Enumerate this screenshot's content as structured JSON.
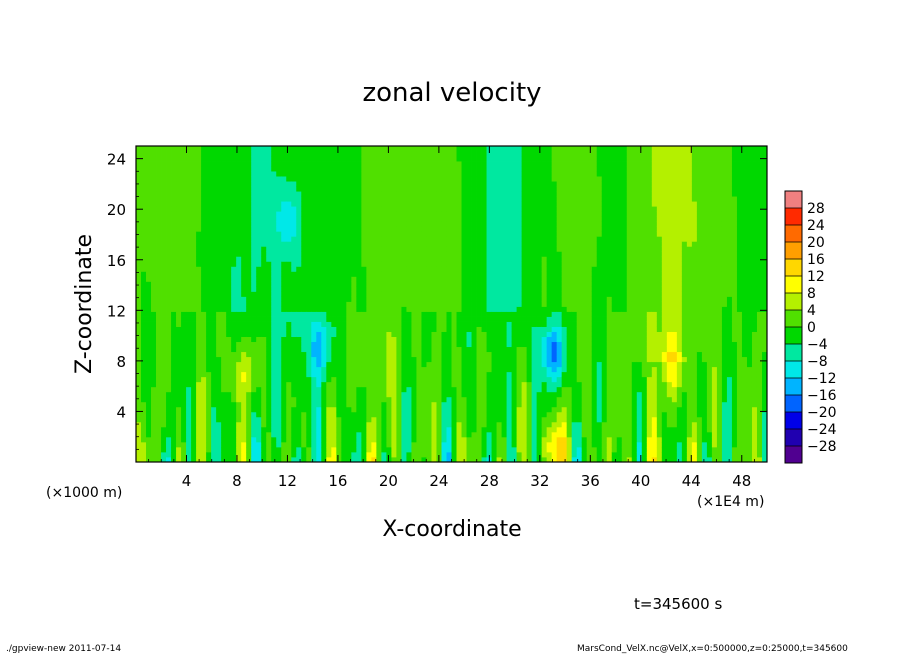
{
  "chart_data": {
    "type": "heatmap",
    "title": "zonal velocity",
    "xlabel": "X-coordinate",
    "ylabel": "Z-coordinate",
    "x_unit_label": "(×1E4 m)",
    "y_unit_label": "(×1000 m)",
    "xlim": [
      0,
      50
    ],
    "ylim": [
      0,
      25
    ],
    "x_ticks": [
      4,
      8,
      12,
      16,
      20,
      24,
      28,
      32,
      36,
      40,
      44,
      48
    ],
    "y_ticks": [
      4,
      8,
      12,
      16,
      20,
      24
    ],
    "colorbar_levels": [
      28,
      24,
      20,
      16,
      12,
      8,
      4,
      0,
      -4,
      -8,
      -12,
      -16,
      -20,
      -24,
      -28
    ],
    "colorbar_colors": [
      "#f08080",
      "#ff2a00",
      "#ff6a00",
      "#ff9f00",
      "#ffd700",
      "#ffff00",
      "#b4f000",
      "#50e000",
      "#00d800",
      "#00e8a0",
      "#00e8e8",
      "#00b4ff",
      "#0064ff",
      "#0000e8",
      "#2000b0",
      "#500090"
    ],
    "colorbar_range": [
      -32,
      32
    ],
    "field_note_strong_features": [
      {
        "x": 33,
        "z": 8.5,
        "value": -16
      },
      {
        "x": 33,
        "z": 1.2,
        "value": 12
      },
      {
        "x": 8.5,
        "z": 7,
        "value": 8
      },
      {
        "x": 42.5,
        "z": 7.5,
        "value": 8
      },
      {
        "x": 14.5,
        "z": 9,
        "value": -12
      },
      {
        "x": 12,
        "z": 19,
        "value": -8
      }
    ]
  },
  "annotations": {
    "time": "t=345600 s",
    "footer_left": "./gpview-new   2011-07-14",
    "footer_right": "MarsCond_VelX.nc@VelX,x=0:500000,z=0:25000,t=345600"
  }
}
